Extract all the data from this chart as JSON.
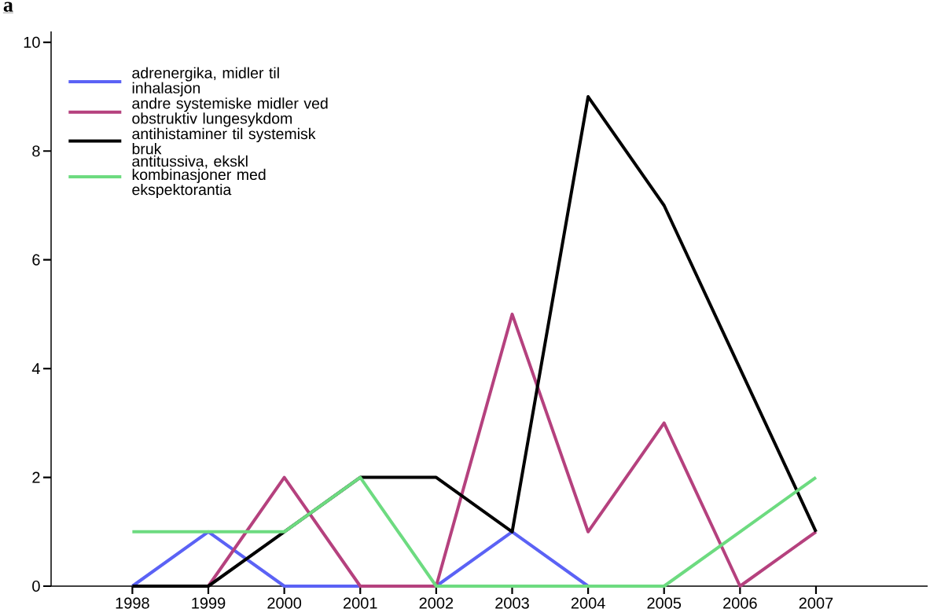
{
  "chart_data": {
    "type": "line",
    "title": "a",
    "categories": [
      "1998",
      "1999",
      "2000",
      "2001",
      "2002",
      "2003",
      "2004",
      "2005",
      "2006",
      "2007"
    ],
    "series": [
      {
        "name": "adrenergika, midler til inhalasjon",
        "color": "#5b62f5",
        "values": [
          0,
          1,
          0,
          0,
          0,
          1,
          0,
          null,
          null,
          null
        ]
      },
      {
        "name": "andre systemiske midler ved obstruktiv lungesykdom",
        "color": "#b5417e",
        "values": [
          null,
          0,
          2,
          0,
          0,
          5,
          1,
          3,
          0,
          1
        ]
      },
      {
        "name": "antihistaminer til systemisk bruk",
        "color": "#000000",
        "values": [
          0,
          0,
          1,
          2,
          2,
          1,
          9,
          7,
          4,
          1
        ]
      },
      {
        "name": "antitussiva, ekskl kombinasjoner med ekspektorantia",
        "color": "#6ddb80",
        "values": [
          1,
          1,
          1,
          2,
          0,
          0,
          0,
          0,
          1,
          2
        ]
      }
    ],
    "ylim": [
      0,
      10.2
    ],
    "yticks": [
      0,
      2,
      4,
      6,
      8,
      10
    ],
    "legend": "top left",
    "line_style": "solid",
    "marker": "none"
  }
}
